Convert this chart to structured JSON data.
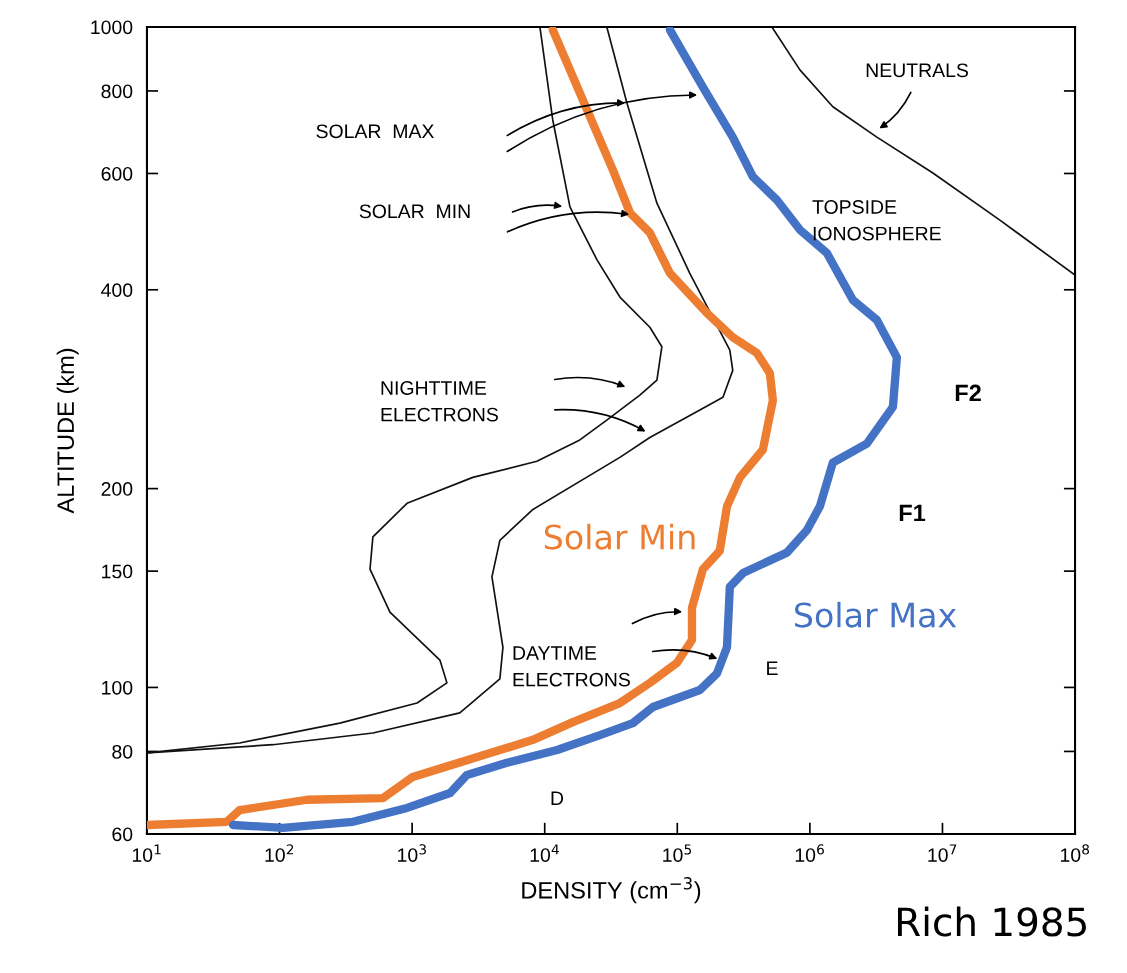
{
  "chart_data": {
    "type": "line",
    "xlabel": "DENSITY (cm$^{−3}$)",
    "ylabel": "ALTITUDE (km)",
    "log": "xy",
    "grid": false,
    "legend": false,
    "xlim": [
      10,
      100000000
    ],
    "ylim": [
      60,
      1000
    ],
    "xticks": [
      {
        "value": 10,
        "label": "10$^{1}$"
      },
      {
        "value": 100,
        "label": "10$^{2}$"
      },
      {
        "value": 1000,
        "label": "10$^{3}$"
      },
      {
        "value": 10000,
        "label": "10$^{4}$"
      },
      {
        "value": 100000,
        "label": "10$^{5}$"
      },
      {
        "value": 1000000,
        "label": "10$^{6}$"
      },
      {
        "value": 10000000,
        "label": "10$^{7}$"
      },
      {
        "value": 100000000,
        "label": "10$^{8}$"
      }
    ],
    "yticks": [
      60,
      80,
      100,
      150,
      200,
      400,
      600,
      800,
      1000
    ],
    "series": [
      {
        "color": "#111111",
        "x": [
          10,
          50,
          285,
          1090,
          1830,
          1620,
          680,
          481,
          506,
          915,
          2870,
          8730,
          18400,
          29400,
          52200,
          70200,
          76500,
          62100,
          36900,
          24800,
          15500,
          11500,
          9200
        ],
        "values": [
          79.6,
          82.4,
          88.3,
          94.7,
          101.6,
          110,
          130,
          151,
          169,
          190,
          208,
          220,
          237,
          254,
          277,
          292,
          328,
          351,
          390,
          444,
          534,
          723,
          1000
        ]
      },
      {
        "color": "#111111",
        "x": [
          10,
          89,
          506,
          2290,
          4590,
          4840,
          4000,
          4590,
          8150,
          36900,
          62100,
          148000,
          221000,
          262000,
          249000,
          124000,
          70200,
          41700,
          29400
        ],
        "values": [
          79.6,
          81.9,
          85.3,
          91.5,
          103,
          115,
          147,
          167,
          186,
          223,
          239,
          263,
          275,
          302,
          324,
          424,
          541,
          767,
          1000
        ]
      },
      {
        "color": "#111111",
        "x": [
          517000,
          841000,
          1490000,
          3200000,
          8470000,
          27100000,
          100000000
        ],
        "values": [
          1000,
          861,
          757,
          681,
          601,
          510,
          421
        ]
      },
      {
        "name": "Solar Min",
        "color": "#ed7d31",
        "x": [
          10,
          40,
          50,
          161,
          602,
          1010,
          2590,
          8150,
          16300,
          36900,
          62100,
          99300,
          129000,
          129000,
          156000,
          209000,
          237000,
          297000,
          442000,
          526000,
          499000,
          398000,
          262000,
          167000,
          87900,
          62100,
          44000,
          32700,
          23900,
          15500,
          11500
        ],
        "values": [
          61.9,
          62.6,
          65.2,
          67.6,
          68.0,
          73.2,
          77.6,
          83.3,
          88.6,
          94.7,
          101.6,
          108.9,
          118,
          132,
          151,
          161,
          188,
          208,
          229,
          272,
          299,
          321,
          339,
          369,
          424,
          488,
          523,
          607,
          703,
          861,
          990
        ]
      },
      {
        "name": "Solar Max",
        "color": "#4472c4",
        "x": [
          44.6,
          106,
          358,
          915,
          1930,
          2590,
          5190,
          12400,
          26100,
          46200,
          65500,
          148000,
          199000,
          237000,
          249000,
          313000,
          671000,
          949000,
          1190000,
          1490000,
          2690000,
          4230000,
          4530000,
          3200000,
          2110000,
          1340000,
          841000,
          564000,
          372000,
          262000,
          156000,
          87900
        ],
        "values": [
          61.9,
          61.3,
          62.6,
          65.7,
          69.2,
          73.7,
          76.9,
          80.4,
          84.7,
          88.3,
          93.4,
          99.1,
          105,
          115,
          142,
          149,
          160,
          173,
          188,
          219,
          234,
          266,
          316,
          360,
          386,
          455,
          493,
          547,
          593,
          681,
          811,
          990
        ]
      }
    ],
    "annotations": [
      "SOLAR  MAX",
      "SOLAR  MIN",
      "NIGHTTIME\nELECTRONS",
      "DAYTIME\nELECTRONS",
      "NEUTRALS",
      "TOPSIDE\nIONOSPHERE",
      "F2",
      "F1",
      "E",
      "D",
      "Rich 1985"
    ]
  }
}
